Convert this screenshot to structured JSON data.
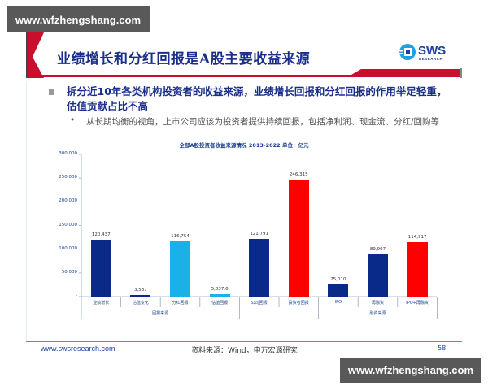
{
  "watermark": {
    "text": "www.wfzhengshang.com"
  },
  "header": {
    "title": "业绩增长和分红回报是A股主要收益来源",
    "logo": {
      "name": "SWS",
      "sub": "RESEARCH"
    },
    "accent_color": "#c8102e"
  },
  "bullets": {
    "main": "拆分近10年各类机构投资者的收益来源，业绩增长回报和分红回报的作用举足轻重，估值贡献占比不高",
    "sub_marker": "•",
    "sub": "从长期均衡的视角，上市公司应该为投资者提供持续回报，包括净利润、现金流、分红/回购等"
  },
  "chart_data": {
    "type": "bar",
    "title": "全部A股投资者收益来源情况 2013-2022 单位：亿元",
    "ylabel": "",
    "xlabel": "",
    "ylim": [
      0,
      300000
    ],
    "yticks": [
      "300,000",
      "250,000",
      "200,000",
      "150,000",
      "100,000",
      "50,000",
      "-"
    ],
    "categories": [
      "业绩增长",
      "估值变化",
      "分红回报",
      "估值回报",
      "公司回报",
      "投资者回报",
      "IPO",
      "再融资",
      "IPO+再融资"
    ],
    "values": [
      120437,
      3587,
      116754,
      5037.6,
      121791,
      246315,
      25010,
      89907,
      114917
    ],
    "value_labels": [
      "120,437",
      "3,587",
      "116,754",
      "5,037.6",
      "121,791",
      "246,315",
      "25,010",
      "89,907",
      "114,917"
    ],
    "colors": [
      "#0a2a8a",
      "#0a2a8a",
      "#1ab0e8",
      "#1ab0e8",
      "#0a2a8a",
      "#ff0000",
      "#0a2a8a",
      "#0a2a8a",
      "#ff0000"
    ],
    "groups": [
      {
        "label": "回报来源",
        "span": [
          0,
          3
        ]
      },
      {
        "label": "融资来源",
        "span": [
          6,
          8
        ]
      }
    ],
    "grid": false,
    "legend": null
  },
  "footer": {
    "url": "www.swsresearch.com",
    "source": "资料来源：Wind，申万宏源研究",
    "page": "58"
  }
}
